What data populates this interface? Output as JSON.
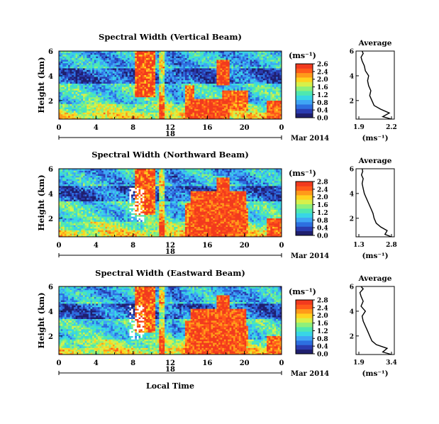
{
  "colors": {
    "colormap": [
      "#1f1f6e",
      "#2a3cb0",
      "#2d6fe0",
      "#3fa6f5",
      "#38d6e6",
      "#4fe8b0",
      "#8ef07a",
      "#d7f04a",
      "#ffd21f",
      "#ff9a1a",
      "#ff5a1a",
      "#f23a1e"
    ],
    "curve": "#000000"
  },
  "shared": {
    "ytick_labels": [
      "2",
      "4",
      "6"
    ],
    "xtick_labels": [
      "0",
      "4",
      "8",
      "12",
      "16",
      "20",
      "0"
    ],
    "date_day": "18",
    "date_text": "Mar 2014",
    "colorbar_unit": "(ms⁻¹)",
    "avg_title": "Average",
    "avg_xlabel": "(ms⁻¹)",
    "avg_yticks": [
      "2",
      "4",
      "6"
    ],
    "bottom_xlabel": "Local Time"
  },
  "chart_data": [
    {
      "type": "heatmap",
      "title": "Spectral Width (Vertical Beam)",
      "ylabel": "Height (km)",
      "xlabel": "",
      "xlim": [
        0,
        24
      ],
      "ylim": [
        0.5,
        6
      ],
      "colorbar_ticks": [
        "2.6",
        "2.4",
        "2.0",
        "1.6",
        "1.2",
        "0.8",
        "0.4",
        "0.0"
      ],
      "avg_xticks": [
        "1.9",
        "2.2"
      ],
      "avg_profile": {
        "height": [
          0.5,
          0.7,
          1.0,
          1.3,
          1.6,
          2.0,
          2.4,
          2.8,
          3.2,
          3.6,
          4.0,
          4.4,
          4.8,
          5.2,
          5.5,
          5.8,
          6.0
        ],
        "value": [
          2.2,
          2.12,
          2.18,
          2.1,
          2.04,
          2.02,
          2.0,
          2.01,
          1.99,
          1.98,
          1.99,
          1.96,
          1.95,
          1.93,
          1.92,
          1.94,
          1.93
        ]
      }
    },
    {
      "type": "heatmap",
      "title": "Spectral Width (Northward Beam)",
      "ylabel": "Height (km)",
      "xlabel": "",
      "xlim": [
        0,
        24
      ],
      "ylim": [
        0.5,
        6
      ],
      "colorbar_ticks": [
        "2.8",
        "2.4",
        "2.0",
        "1.6",
        "1.2",
        "0.8",
        "0.4",
        "0.0"
      ],
      "avg_xticks": [
        "1.3",
        "2.8"
      ],
      "avg_profile": {
        "height": [
          0.5,
          0.7,
          1.0,
          1.3,
          1.6,
          2.0,
          2.4,
          2.8,
          3.2,
          3.6,
          4.0,
          4.4,
          4.8,
          5.2,
          5.5,
          5.8,
          6.0
        ],
        "value": [
          2.8,
          2.5,
          2.6,
          2.3,
          2.1,
          2.0,
          1.95,
          1.85,
          1.75,
          1.65,
          1.55,
          1.5,
          1.45,
          1.5,
          1.42,
          1.48,
          1.45
        ]
      }
    },
    {
      "type": "heatmap",
      "title": "Spectral Width (Eastward Beam)",
      "ylabel": "Height (km)",
      "xlabel": "Local Time",
      "xlim": [
        0,
        24
      ],
      "ylim": [
        0.5,
        6
      ],
      "colorbar_ticks": [
        "2.8",
        "2.4",
        "2.0",
        "1.6",
        "1.2",
        "0.8",
        "0.4",
        "0.0"
      ],
      "avg_xticks": [
        "1.9",
        "3.4"
      ],
      "avg_profile": {
        "height": [
          0.5,
          0.7,
          1.0,
          1.3,
          1.6,
          2.0,
          2.4,
          2.8,
          3.2,
          3.6,
          4.0,
          4.4,
          4.8,
          5.2,
          5.5,
          5.8,
          6.0
        ],
        "value": [
          3.4,
          3.0,
          3.2,
          2.7,
          2.5,
          2.4,
          2.3,
          2.2,
          2.1,
          2.05,
          2.2,
          2.0,
          2.1,
          2.0,
          1.95,
          2.1,
          2.0
        ]
      }
    }
  ]
}
